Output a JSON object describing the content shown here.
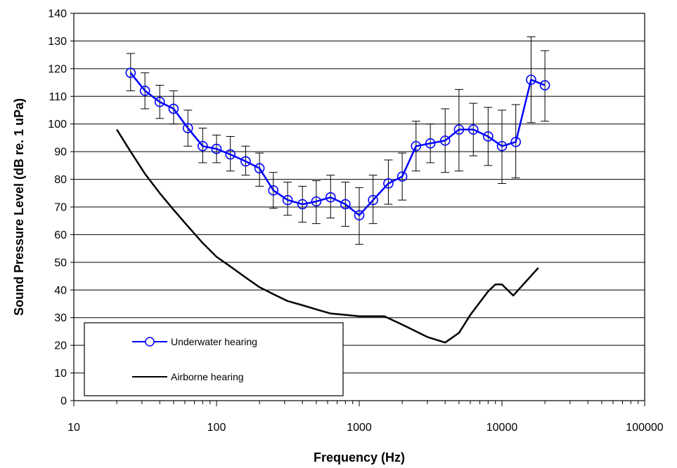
{
  "chart_data": {
    "type": "line",
    "xlabel": "Frequency (Hz)",
    "ylabel": "Sound Pressure Level (dB re. 1 uPa)",
    "x_scale": "log",
    "xlim": [
      10,
      100000
    ],
    "ylim": [
      0,
      140
    ],
    "x_ticks": [
      "10",
      "100",
      "1000",
      "10000",
      "100000"
    ],
    "y_ticks": [
      "0",
      "10",
      "20",
      "30",
      "40",
      "50",
      "60",
      "70",
      "80",
      "90",
      "100",
      "110",
      "120",
      "130",
      "140"
    ],
    "grid": "horizontal",
    "legend_position": "bottom-left",
    "series": [
      {
        "name": "Underwater hearing",
        "color": "#0000ff",
        "marker": "open-circle",
        "x": [
          25,
          31.5,
          40,
          50,
          63,
          80,
          100,
          125,
          160,
          200,
          250,
          315,
          400,
          500,
          630,
          800,
          1000,
          1250,
          1600,
          2000,
          2500,
          3150,
          4000,
          5000,
          6300,
          8000,
          10000,
          12500,
          16000,
          20000
        ],
        "y": [
          118.5,
          112,
          108,
          105.5,
          98.5,
          92,
          91,
          89,
          86.5,
          84,
          76,
          72.5,
          71,
          72,
          73.5,
          71,
          67,
          72.5,
          78.5,
          81,
          92,
          93,
          94,
          98,
          98,
          95.5,
          92,
          93.5,
          116,
          114
        ],
        "error_high": [
          125.5,
          118.5,
          114,
          112,
          105,
          98.5,
          96,
          95.5,
          92,
          89.5,
          82.5,
          79,
          77.5,
          79.5,
          81.5,
          79,
          77,
          81.5,
          87,
          89.5,
          101,
          100,
          105.5,
          112.5,
          107.5,
          106,
          105,
          107,
          131.5,
          126.5
        ],
        "error_low": [
          112,
          105.5,
          102,
          100,
          92,
          86,
          86,
          83,
          81.5,
          77.5,
          69.5,
          67,
          64.5,
          64,
          66,
          63,
          56.5,
          64,
          71,
          72.5,
          83,
          86,
          82.5,
          83,
          88.5,
          85,
          78.5,
          80.5,
          100.5,
          101
        ]
      },
      {
        "name": "Airborne hearing",
        "color": "#000000",
        "marker": "none",
        "x": [
          20,
          25,
          31.5,
          40,
          50,
          63,
          80,
          100,
          125,
          160,
          200,
          250,
          315,
          400,
          500,
          630,
          800,
          1000,
          1500,
          2000,
          3000,
          4000,
          5000,
          6000,
          8000,
          9000,
          10000,
          12000,
          18000
        ],
        "y": [
          98,
          90,
          82,
          75,
          69,
          63,
          57,
          52,
          48.5,
          44.5,
          41,
          38.5,
          36,
          34.5,
          33,
          31.5,
          31,
          30.5,
          30.5,
          27.5,
          23,
          21,
          24.5,
          31,
          39.5,
          42,
          42,
          38,
          48
        ]
      }
    ]
  }
}
